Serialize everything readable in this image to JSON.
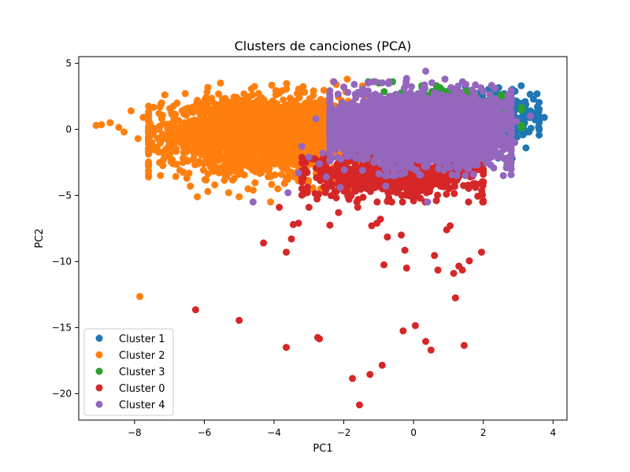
{
  "chart_data": {
    "type": "scatter",
    "title": "Clusters de canciones (PCA)",
    "xlabel": "PC1",
    "ylabel": "PC2",
    "xlim": [
      -9.6,
      4.4
    ],
    "ylim": [
      -22.0,
      5.5
    ],
    "xticks": [
      -8,
      -6,
      -4,
      -2,
      0,
      2,
      4
    ],
    "yticks": [
      5,
      0,
      -5,
      -10,
      -15,
      -20
    ],
    "xtick_labels": [
      "−8",
      "−6",
      "−4",
      "−2",
      "0",
      "2",
      "4"
    ],
    "ytick_labels": [
      "5",
      "0",
      "−5",
      "−10",
      "−15",
      "−20"
    ],
    "grid": false,
    "legend_position": "lower-left",
    "series": [
      {
        "name": "Cluster 1",
        "color": "#1f77b4",
        "density": {
          "count": 900,
          "cx": 1.6,
          "cy": 0.7,
          "sx": 0.9,
          "sy": 1.0,
          "xmin": -0.2,
          "xmax": 3.6,
          "ymin": -2.2,
          "ymax": 3.3
        },
        "points": [
          [
            3.75,
            0.9
          ],
          [
            3.55,
            1.7
          ],
          [
            3.4,
            1.3
          ],
          [
            3.2,
            2.1
          ],
          [
            3.0,
            1.8
          ],
          [
            2.8,
            2.4
          ],
          [
            2.6,
            2.7
          ]
        ]
      },
      {
        "name": "Cluster 2",
        "color": "#ff7f0e",
        "density": {
          "count": 2600,
          "cx": -4.2,
          "cy": -0.4,
          "sx": 1.5,
          "sy": 1.3,
          "xmin": -7.6,
          "xmax": -0.7,
          "ymin": -4.5,
          "ymax": 3.6
        },
        "points": [
          [
            -9.1,
            0.3
          ],
          [
            -8.95,
            0.35
          ],
          [
            -8.7,
            0.5
          ],
          [
            -8.45,
            0.15
          ],
          [
            -8.3,
            -0.2
          ],
          [
            -8.1,
            1.4
          ],
          [
            -7.9,
            -0.7
          ],
          [
            -7.75,
            0.9
          ],
          [
            -7.5,
            -1.0
          ],
          [
            -7.3,
            1.2
          ],
          [
            -7.1,
            -1.5
          ],
          [
            -6.9,
            -2.6
          ],
          [
            -6.7,
            -3.1
          ],
          [
            -6.5,
            -3.7
          ],
          [
            -6.4,
            -4.3
          ],
          [
            -6.2,
            -5.1
          ],
          [
            -5.9,
            -4.7
          ],
          [
            -5.7,
            -4.2
          ],
          [
            -5.3,
            -4.8
          ],
          [
            -5.0,
            -5.1
          ],
          [
            -4.6,
            -4.6
          ],
          [
            -4.1,
            -5.5
          ],
          [
            -3.7,
            -4.1
          ],
          [
            -3.3,
            -3.9
          ],
          [
            -2.9,
            -4.5
          ],
          [
            -7.85,
            -12.65
          ],
          [
            -2.3,
            3.6
          ],
          [
            -1.9,
            3.8
          ]
        ]
      },
      {
        "name": "Cluster 3",
        "color": "#2ca02c",
        "density": {
          "count": 500,
          "cx": 0.8,
          "cy": 1.2,
          "sx": 0.9,
          "sy": 0.8,
          "xmin": -1.3,
          "xmax": 3.1,
          "ymin": -1.0,
          "ymax": 3.3
        },
        "points": [
          [
            3.1,
            0.3
          ],
          [
            2.95,
            0.6
          ],
          [
            2.7,
            1.2
          ],
          [
            -1.3,
            3.6
          ],
          [
            -1.0,
            3.5
          ],
          [
            -0.6,
            3.6
          ]
        ]
      },
      {
        "name": "Cluster 0",
        "color": "#d62728",
        "density": {
          "count": 700,
          "cx": -0.5,
          "cy": -3.4,
          "sx": 1.3,
          "sy": 0.8,
          "xmin": -3.2,
          "xmax": 2.0,
          "ymin": -5.5,
          "ymax": -1.8
        },
        "points": [
          [
            -4.3,
            -8.6
          ],
          [
            -3.85,
            -5.9
          ],
          [
            -3.65,
            -9.3
          ],
          [
            -3.5,
            -8.3
          ],
          [
            -3.45,
            -7.2
          ],
          [
            -3.3,
            -7.1
          ],
          [
            -3.0,
            -5.9
          ],
          [
            -2.75,
            -15.75
          ],
          [
            -2.7,
            -15.85
          ],
          [
            -2.4,
            -7.25
          ],
          [
            -2.15,
            -6.3
          ],
          [
            -1.85,
            -5.3
          ],
          [
            -1.6,
            -5.9
          ],
          [
            -1.2,
            -7.3
          ],
          [
            -1.05,
            -7.1
          ],
          [
            -0.95,
            -6.8
          ],
          [
            -0.85,
            -10.25
          ],
          [
            -0.75,
            -8.15
          ],
          [
            -0.35,
            -8.0
          ],
          [
            -0.25,
            -9.15
          ],
          [
            -0.2,
            -10.5
          ],
          [
            -3.65,
            -16.5
          ],
          [
            -1.75,
            -18.85
          ],
          [
            -1.55,
            -20.85
          ],
          [
            -1.25,
            -18.55
          ],
          [
            -0.9,
            -17.85
          ],
          [
            -0.3,
            -15.25
          ],
          [
            0.05,
            -14.85
          ],
          [
            0.35,
            -16.05
          ],
          [
            0.5,
            -16.7
          ],
          [
            0.6,
            -9.55
          ],
          [
            0.7,
            -10.65
          ],
          [
            0.95,
            -7.6
          ],
          [
            1.05,
            -7.3
          ],
          [
            1.15,
            -10.9
          ],
          [
            1.2,
            -12.75
          ],
          [
            1.3,
            -10.35
          ],
          [
            1.4,
            -10.65
          ],
          [
            1.45,
            -16.35
          ],
          [
            1.6,
            -9.95
          ],
          [
            1.95,
            -9.3
          ],
          [
            -6.25,
            -13.65
          ],
          [
            -5.0,
            -14.45
          ]
        ]
      },
      {
        "name": "Cluster 4",
        "color": "#9467bd",
        "density": {
          "count": 3800,
          "cx": 0.3,
          "cy": 0.0,
          "sx": 1.2,
          "sy": 1.2,
          "xmin": -2.4,
          "xmax": 2.8,
          "ymin": -3.5,
          "ymax": 3.6
        },
        "points": [
          [
            -4.6,
            -5.5
          ],
          [
            -3.6,
            -4.8
          ],
          [
            -3.3,
            -3.3
          ],
          [
            -3.2,
            -1.3
          ],
          [
            -3.0,
            -2.1
          ],
          [
            -2.8,
            0.8
          ],
          [
            -2.6,
            -1.8
          ],
          [
            -2.7,
            -2.6
          ],
          [
            -2.5,
            -3.6
          ],
          [
            -2.4,
            2.0
          ],
          [
            -2.1,
            -4.4
          ],
          [
            -2.0,
            3.2
          ],
          [
            -1.7,
            3.4
          ],
          [
            -1.3,
            3.5
          ],
          [
            -0.7,
            3.6
          ],
          [
            -0.2,
            3.85
          ],
          [
            0.35,
            4.4
          ],
          [
            0.9,
            3.8
          ],
          [
            1.5,
            3.4
          ],
          [
            2.0,
            2.9
          ],
          [
            2.35,
            2.3
          ],
          [
            2.7,
            1.2
          ],
          [
            2.95,
            0.6
          ],
          [
            3.35,
            1.0
          ],
          [
            2.9,
            -1.0
          ],
          [
            2.5,
            -2.0
          ],
          [
            2.1,
            -2.4
          ],
          [
            1.5,
            -2.9
          ],
          [
            0.4,
            -5.5
          ],
          [
            -0.8,
            -4.3
          ]
        ]
      }
    ]
  }
}
